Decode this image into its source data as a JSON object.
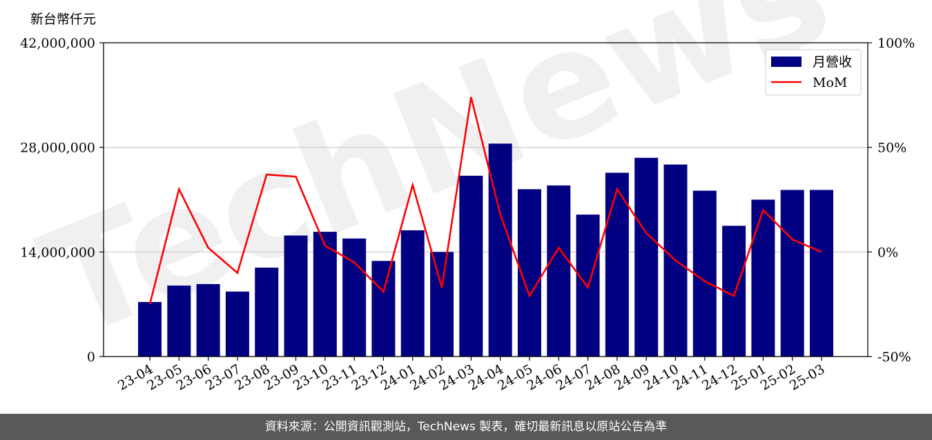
{
  "chart_data": {
    "type": "bar+line",
    "unit_label": "新台幣仟元",
    "categories": [
      "23-04",
      "23-05",
      "23-06",
      "23-07",
      "23-08",
      "23-09",
      "23-10",
      "23-11",
      "23-12",
      "24-01",
      "24-02",
      "24-03",
      "24-04",
      "24-05",
      "24-06",
      "24-07",
      "24-08",
      "24-09",
      "24-10",
      "24-11",
      "24-12",
      "25-01",
      "25-02",
      "25-03"
    ],
    "series": [
      {
        "name": "月營收",
        "kind": "bar",
        "axis": "left",
        "color": "#000080",
        "values": [
          7300000,
          9500000,
          9700000,
          8700000,
          11900000,
          16200000,
          16700000,
          15800000,
          12800000,
          16900000,
          14000000,
          24200000,
          28500000,
          22400000,
          22900000,
          19000000,
          24600000,
          26600000,
          25700000,
          22200000,
          17500000,
          21000000,
          22300000,
          22300000
        ]
      },
      {
        "name": "MoM",
        "kind": "line",
        "axis": "right",
        "color": "#ff0000",
        "values": [
          -25,
          30,
          2,
          -10,
          37,
          36,
          3,
          -5,
          -19,
          32,
          -17,
          74,
          18,
          -21,
          2,
          -17,
          30,
          9,
          -4,
          -14,
          -21,
          20,
          6,
          0
        ]
      }
    ],
    "y_left": {
      "min": 0,
      "max": 42000000,
      "ticks": [
        0,
        14000000,
        28000000,
        42000000
      ],
      "tick_labels": [
        "0",
        "14,000,000",
        "28,000,000",
        "42,000,000"
      ]
    },
    "y_right": {
      "min": -50,
      "max": 100,
      "ticks": [
        -50,
        0,
        50,
        100
      ],
      "tick_labels": [
        "-50%",
        "0%",
        "50%",
        "100%"
      ]
    },
    "grid": "horizontal",
    "legend_position": "top-right",
    "watermark": "TechNews"
  },
  "footer": {
    "text": "資料來源：公開資訊觀測站，TechNews 製表，確切最新訊息以原站公告為準"
  }
}
